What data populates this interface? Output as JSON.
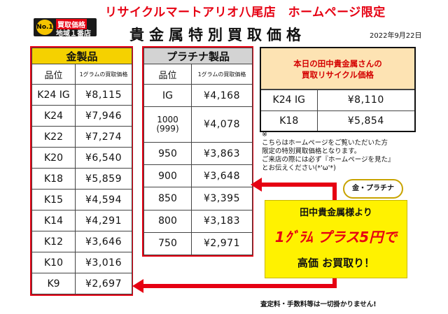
{
  "header": {
    "title": "リサイクルマートアリオ八尾店　ホームページ限定",
    "badge": {
      "no1": "No.1",
      "line1": "買取価格",
      "line2": "地域１番店"
    },
    "page_title": "貴金属特別買取価格",
    "date": "2022年9月22日"
  },
  "gold": {
    "title": "金製品",
    "col_grade": "品位",
    "col_price": "1グラムの買取価格",
    "rows": [
      {
        "grade": "K24 IG",
        "price": "¥8,115"
      },
      {
        "grade": "K24",
        "price": "¥7,946"
      },
      {
        "grade": "K22",
        "price": "¥7,274"
      },
      {
        "grade": "K20",
        "price": "¥6,540"
      },
      {
        "grade": "K18",
        "price": "¥5,859"
      },
      {
        "grade": "K15",
        "price": "¥4,594"
      },
      {
        "grade": "K14",
        "price": "¥4,291"
      },
      {
        "grade": "K12",
        "price": "¥3,646"
      },
      {
        "grade": "K10",
        "price": "¥3,016"
      },
      {
        "grade": "K9",
        "price": "¥2,697"
      }
    ]
  },
  "platinum": {
    "title": "プラチナ製品",
    "col_grade": "品位",
    "col_price": "1グラムの買取価格",
    "rows": [
      {
        "grade": "IG",
        "price": "¥4,168"
      },
      {
        "grade": "1000\n(999)",
        "price": "¥4,078"
      },
      {
        "grade": "950",
        "price": "¥3,863"
      },
      {
        "grade": "900",
        "price": "¥3,648"
      },
      {
        "grade": "850",
        "price": "¥3,395"
      },
      {
        "grade": "800",
        "price": "¥3,183"
      },
      {
        "grade": "750",
        "price": "¥2,971"
      }
    ]
  },
  "today": {
    "title_line1": "本日の田中貴金属さんの",
    "title_line2": "買取リサイクル価格",
    "rows": [
      {
        "grade": "K24 IG",
        "price": "¥8,110"
      },
      {
        "grade": "K18",
        "price": "¥5,854"
      }
    ]
  },
  "note": [
    "※",
    "こちらはホームページをご覧いただいた方",
    "限定の特別買取価格となります。",
    "ご来店の際には必ず『ホームページを見た』",
    "とお伝えください(*'ω'*)"
  ],
  "promo": {
    "bubble": "金・プラチナ",
    "line1": "田中貴金属様より",
    "line2": "1ｸﾞﾗﾑ プラス5円で",
    "line3": "高価 お買取り！"
  },
  "footer": "査定料・手数料等は一切掛かりません!",
  "colors": {
    "accent_red": "#e60012",
    "gold_header": "#f5d100",
    "platinum_header": "#d3d3d3",
    "promo_yellow": "#fff200",
    "today_header": "#fde3b3"
  }
}
